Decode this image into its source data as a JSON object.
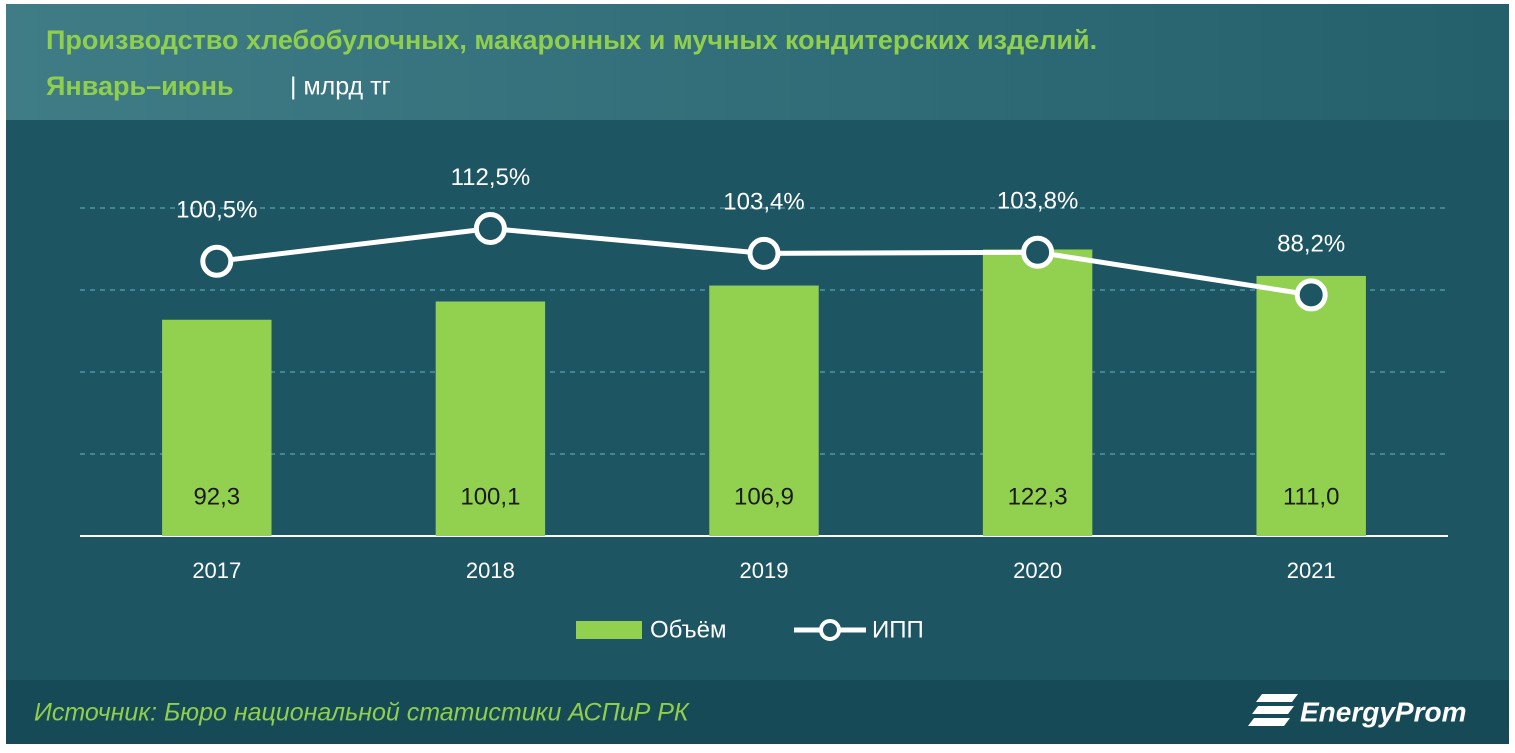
{
  "chart_data": {
    "type": "bar",
    "title": "Производство хлебобулочных, макаронных и мучных кондитерских изделий.",
    "subtitle": "Январь–июнь",
    "unit": "| млрд тг",
    "source": "Источник: Бюро национальной  статистики АСПиР РК",
    "brand": "EnergyProm",
    "categories": [
      "2017",
      "2018",
      "2019",
      "2020",
      "2021"
    ],
    "series": [
      {
        "name": "Объём",
        "type": "bar",
        "color": "#92d050",
        "values": [
          92.3,
          100.1,
          106.9,
          122.3,
          111.0
        ],
        "value_labels": [
          "92,3",
          "100,1",
          "106,9",
          "122,3",
          "111,0"
        ]
      },
      {
        "name": "ИПП",
        "type": "line",
        "axis": "y2",
        "color": "#ffffff",
        "values": [
          100.5,
          112.5,
          103.4,
          103.8,
          88.2
        ],
        "value_labels": [
          "100,5%",
          "112,5%",
          "103,4%",
          "103,8%",
          "88,2%"
        ]
      }
    ],
    "ylim": [
      0,
      140
    ],
    "yticks": [
      0,
      35,
      70,
      105,
      140
    ],
    "y2lim": [
      0,
      120
    ],
    "grid": true
  }
}
